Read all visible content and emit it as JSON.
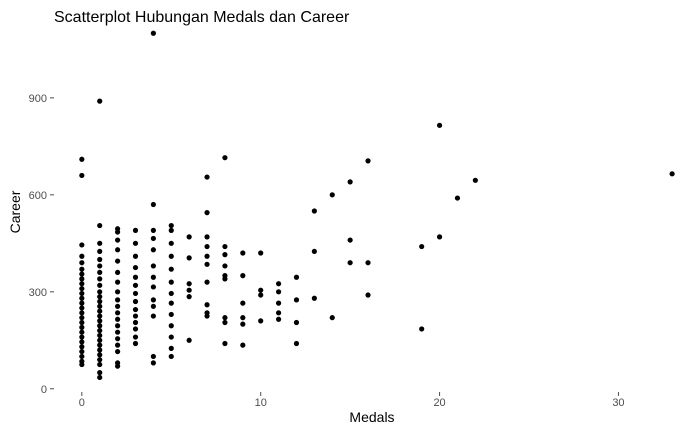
{
  "chart_data": {
    "type": "scatter",
    "title": "Scatterplot Hubungan Medals dan Career",
    "xlabel": "Medals",
    "ylabel": "Career",
    "xlim": [
      -1.5,
      34
    ],
    "ylim": [
      -10,
      1110
    ],
    "xticks": [
      0,
      10,
      20,
      30
    ],
    "yticks": [
      0,
      300,
      600,
      900
    ],
    "grid": false,
    "legend": "none",
    "point_color": "#000000",
    "points": [
      [
        0,
        710
      ],
      [
        0,
        660
      ],
      [
        0,
        445
      ],
      [
        0,
        410
      ],
      [
        0,
        390
      ],
      [
        0,
        370
      ],
      [
        0,
        355
      ],
      [
        0,
        340
      ],
      [
        0,
        325
      ],
      [
        0,
        310
      ],
      [
        0,
        295
      ],
      [
        0,
        280
      ],
      [
        0,
        265
      ],
      [
        0,
        250
      ],
      [
        0,
        235
      ],
      [
        0,
        220
      ],
      [
        0,
        205
      ],
      [
        0,
        190
      ],
      [
        0,
        175
      ],
      [
        0,
        160
      ],
      [
        0,
        145
      ],
      [
        0,
        130
      ],
      [
        0,
        115
      ],
      [
        0,
        100
      ],
      [
        0,
        85
      ],
      [
        0,
        75
      ],
      [
        1,
        890
      ],
      [
        1,
        505
      ],
      [
        1,
        450
      ],
      [
        1,
        425
      ],
      [
        1,
        400
      ],
      [
        1,
        380
      ],
      [
        1,
        360
      ],
      [
        1,
        340
      ],
      [
        1,
        320
      ],
      [
        1,
        300
      ],
      [
        1,
        285
      ],
      [
        1,
        270
      ],
      [
        1,
        255
      ],
      [
        1,
        240
      ],
      [
        1,
        225
      ],
      [
        1,
        210
      ],
      [
        1,
        195
      ],
      [
        1,
        180
      ],
      [
        1,
        165
      ],
      [
        1,
        150
      ],
      [
        1,
        135
      ],
      [
        1,
        120
      ],
      [
        1,
        105
      ],
      [
        1,
        90
      ],
      [
        1,
        75
      ],
      [
        1,
        50
      ],
      [
        1,
        35
      ],
      [
        2,
        495
      ],
      [
        2,
        485
      ],
      [
        2,
        460
      ],
      [
        2,
        430
      ],
      [
        2,
        395
      ],
      [
        2,
        360
      ],
      [
        2,
        330
      ],
      [
        2,
        300
      ],
      [
        2,
        275
      ],
      [
        2,
        255
      ],
      [
        2,
        235
      ],
      [
        2,
        215
      ],
      [
        2,
        195
      ],
      [
        2,
        175
      ],
      [
        2,
        155
      ],
      [
        2,
        135
      ],
      [
        2,
        115
      ],
      [
        2,
        80
      ],
      [
        2,
        70
      ],
      [
        3,
        490
      ],
      [
        3,
        450
      ],
      [
        3,
        410
      ],
      [
        3,
        375
      ],
      [
        3,
        345
      ],
      [
        3,
        320
      ],
      [
        3,
        295
      ],
      [
        3,
        270
      ],
      [
        3,
        245
      ],
      [
        3,
        225
      ],
      [
        3,
        205
      ],
      [
        3,
        185
      ],
      [
        3,
        160
      ],
      [
        3,
        140
      ],
      [
        4,
        1100
      ],
      [
        4,
        570
      ],
      [
        4,
        490
      ],
      [
        4,
        465
      ],
      [
        4,
        430
      ],
      [
        4,
        380
      ],
      [
        4,
        345
      ],
      [
        4,
        315
      ],
      [
        4,
        275
      ],
      [
        4,
        255
      ],
      [
        4,
        225
      ],
      [
        4,
        100
      ],
      [
        4,
        80
      ],
      [
        5,
        505
      ],
      [
        5,
        490
      ],
      [
        5,
        450
      ],
      [
        5,
        410
      ],
      [
        5,
        370
      ],
      [
        5,
        330
      ],
      [
        5,
        295
      ],
      [
        5,
        265
      ],
      [
        5,
        230
      ],
      [
        5,
        195
      ],
      [
        5,
        160
      ],
      [
        5,
        125
      ],
      [
        5,
        100
      ],
      [
        6,
        470
      ],
      [
        6,
        405
      ],
      [
        6,
        325
      ],
      [
        6,
        305
      ],
      [
        6,
        285
      ],
      [
        6,
        150
      ],
      [
        7,
        655
      ],
      [
        7,
        545
      ],
      [
        7,
        470
      ],
      [
        7,
        440
      ],
      [
        7,
        410
      ],
      [
        7,
        385
      ],
      [
        7,
        330
      ],
      [
        7,
        260
      ],
      [
        7,
        235
      ],
      [
        7,
        225
      ],
      [
        8,
        715
      ],
      [
        8,
        440
      ],
      [
        8,
        415
      ],
      [
        8,
        380
      ],
      [
        8,
        350
      ],
      [
        8,
        340
      ],
      [
        8,
        220
      ],
      [
        8,
        205
      ],
      [
        8,
        140
      ],
      [
        9,
        420
      ],
      [
        9,
        350
      ],
      [
        9,
        265
      ],
      [
        9,
        220
      ],
      [
        9,
        200
      ],
      [
        9,
        135
      ],
      [
        10,
        420
      ],
      [
        10,
        305
      ],
      [
        10,
        290
      ],
      [
        10,
        210
      ],
      [
        11,
        325
      ],
      [
        11,
        300
      ],
      [
        11,
        265
      ],
      [
        11,
        235
      ],
      [
        11,
        215
      ],
      [
        12,
        345
      ],
      [
        12,
        275
      ],
      [
        12,
        205
      ],
      [
        12,
        140
      ],
      [
        13,
        550
      ],
      [
        13,
        425
      ],
      [
        13,
        280
      ],
      [
        14,
        600
      ],
      [
        14,
        220
      ],
      [
        15,
        640
      ],
      [
        15,
        460
      ],
      [
        15,
        390
      ],
      [
        16,
        705
      ],
      [
        16,
        390
      ],
      [
        16,
        290
      ],
      [
        19,
        440
      ],
      [
        19,
        185
      ],
      [
        20,
        815
      ],
      [
        20,
        470
      ],
      [
        21,
        590
      ],
      [
        22,
        645
      ],
      [
        33,
        665
      ]
    ]
  }
}
